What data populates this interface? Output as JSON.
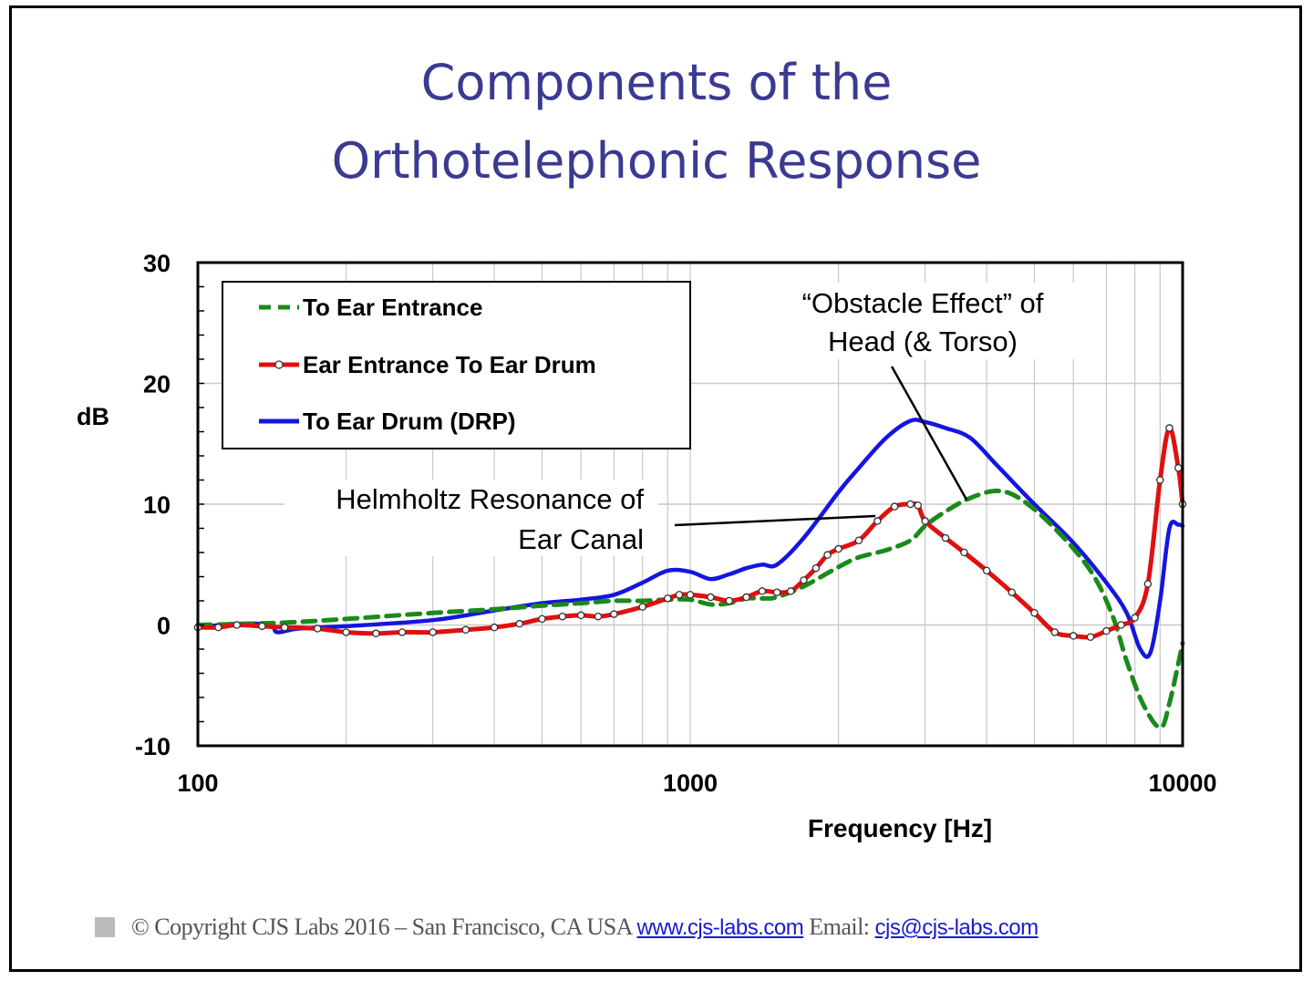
{
  "title_line1": "Components of the",
  "title_line2": "Orthotelephonic Response",
  "footer": {
    "copyright": "© Copyright CJS Labs 2016 – San Francisco, CA  USA",
    "website": "www.cjs-labs.com",
    "email_label": "Email:",
    "email": "cjs@cjs-labs.com"
  },
  "chart_data": {
    "type": "line",
    "xlabel": "Frequency [Hz]",
    "ylabel": "dB",
    "xscale": "log",
    "xlim": [
      100,
      10000
    ],
    "ylim": [
      -10,
      30
    ],
    "xticks": [
      "100",
      "1000",
      "10000"
    ],
    "yticks": [
      "30",
      "20",
      "10",
      "0",
      "-10"
    ],
    "grid": "vertical minor lines and horizontal major lines",
    "legend_position": "top-left",
    "series": [
      {
        "name": "To Ear Entrance",
        "color": "#1a8a1a",
        "style": "dashed",
        "points": [
          [
            100,
            0
          ],
          [
            150,
            0.2
          ],
          [
            200,
            0.5
          ],
          [
            300,
            1.0
          ],
          [
            400,
            1.3
          ],
          [
            500,
            1.6
          ],
          [
            600,
            1.8
          ],
          [
            700,
            2.0
          ],
          [
            800,
            2.0
          ],
          [
            900,
            2.1
          ],
          [
            1000,
            2.1
          ],
          [
            1100,
            1.7
          ],
          [
            1200,
            1.8
          ],
          [
            1300,
            2.2
          ],
          [
            1400,
            2.2
          ],
          [
            1500,
            2.3
          ],
          [
            1700,
            3.2
          ],
          [
            2000,
            4.8
          ],
          [
            2200,
            5.6
          ],
          [
            2500,
            6.2
          ],
          [
            2800,
            7.0
          ],
          [
            3000,
            8.2
          ],
          [
            3300,
            9.4
          ],
          [
            3700,
            10.5
          ],
          [
            4200,
            11.1
          ],
          [
            4700,
            10.4
          ],
          [
            5500,
            8.0
          ],
          [
            6500,
            4.5
          ],
          [
            7200,
            0.8
          ],
          [
            7700,
            -3.0
          ],
          [
            8300,
            -6.5
          ],
          [
            9000,
            -8.5
          ],
          [
            9400,
            -6.5
          ],
          [
            10000,
            -1.5
          ]
        ]
      },
      {
        "name": "Ear Entrance To Ear Drum",
        "color": "#e01010",
        "style": "solid with open circle markers",
        "points": [
          [
            100,
            -0.2
          ],
          [
            110,
            -0.2
          ],
          [
            120,
            0
          ],
          [
            135,
            -0.1
          ],
          [
            150,
            -0.2
          ],
          [
            175,
            -0.3
          ],
          [
            200,
            -0.6
          ],
          [
            230,
            -0.7
          ],
          [
            260,
            -0.6
          ],
          [
            300,
            -0.6
          ],
          [
            350,
            -0.4
          ],
          [
            400,
            -0.2
          ],
          [
            450,
            0.1
          ],
          [
            500,
            0.5
          ],
          [
            550,
            0.7
          ],
          [
            600,
            0.8
          ],
          [
            650,
            0.7
          ],
          [
            700,
            0.9
          ],
          [
            800,
            1.5
          ],
          [
            900,
            2.2
          ],
          [
            950,
            2.5
          ],
          [
            1000,
            2.5
          ],
          [
            1100,
            2.3
          ],
          [
            1200,
            2.0
          ],
          [
            1300,
            2.3
          ],
          [
            1400,
            2.8
          ],
          [
            1500,
            2.7
          ],
          [
            1600,
            2.8
          ],
          [
            1700,
            3.7
          ],
          [
            1800,
            4.7
          ],
          [
            1900,
            5.8
          ],
          [
            2000,
            6.3
          ],
          [
            2200,
            7.0
          ],
          [
            2400,
            8.6
          ],
          [
            2600,
            9.8
          ],
          [
            2800,
            10.0
          ],
          [
            2900,
            9.9
          ],
          [
            3000,
            8.6
          ],
          [
            3300,
            7.2
          ],
          [
            3600,
            6.0
          ],
          [
            4000,
            4.5
          ],
          [
            4500,
            2.7
          ],
          [
            5000,
            1.0
          ],
          [
            5500,
            -0.6
          ],
          [
            6000,
            -0.9
          ],
          [
            6500,
            -1.0
          ],
          [
            7000,
            -0.5
          ],
          [
            7500,
            0
          ],
          [
            8000,
            0.6
          ],
          [
            8500,
            3.4
          ],
          [
            9000,
            12.0
          ],
          [
            9400,
            16.3
          ],
          [
            9800,
            13.0
          ],
          [
            10000,
            10.0
          ]
        ]
      },
      {
        "name": "To Ear Drum (DRP)",
        "color": "#1515e0",
        "style": "solid",
        "points": [
          [
            100,
            -0.2
          ],
          [
            120,
            0.1
          ],
          [
            140,
            0.0
          ],
          [
            145,
            -0.6
          ],
          [
            160,
            -0.3
          ],
          [
            200,
            -0.1
          ],
          [
            300,
            0.4
          ],
          [
            400,
            1.2
          ],
          [
            500,
            1.8
          ],
          [
            600,
            2.1
          ],
          [
            700,
            2.5
          ],
          [
            800,
            3.5
          ],
          [
            900,
            4.5
          ],
          [
            1000,
            4.4
          ],
          [
            1100,
            3.8
          ],
          [
            1200,
            4.2
          ],
          [
            1300,
            4.7
          ],
          [
            1400,
            5.0
          ],
          [
            1500,
            5.0
          ],
          [
            1700,
            7.2
          ],
          [
            2000,
            11.0
          ],
          [
            2200,
            13.0
          ],
          [
            2500,
            15.5
          ],
          [
            2800,
            16.9
          ],
          [
            3000,
            16.8
          ],
          [
            3300,
            16.3
          ],
          [
            3700,
            15.5
          ],
          [
            4200,
            13.2
          ],
          [
            5000,
            10.0
          ],
          [
            6000,
            6.8
          ],
          [
            7000,
            3.5
          ],
          [
            7700,
            1.0
          ],
          [
            8200,
            -2.0
          ],
          [
            8600,
            -2.3
          ],
          [
            9000,
            2.0
          ],
          [
            9400,
            8.0
          ],
          [
            9800,
            8.3
          ],
          [
            10000,
            8.2
          ]
        ]
      }
    ],
    "annotations": [
      {
        "text": [
          "“Obstacle Effect” of",
          "Head (& Torso)"
        ]
      },
      {
        "text": [
          "Helmholtz Resonance of",
          "Ear Canal"
        ]
      }
    ]
  }
}
